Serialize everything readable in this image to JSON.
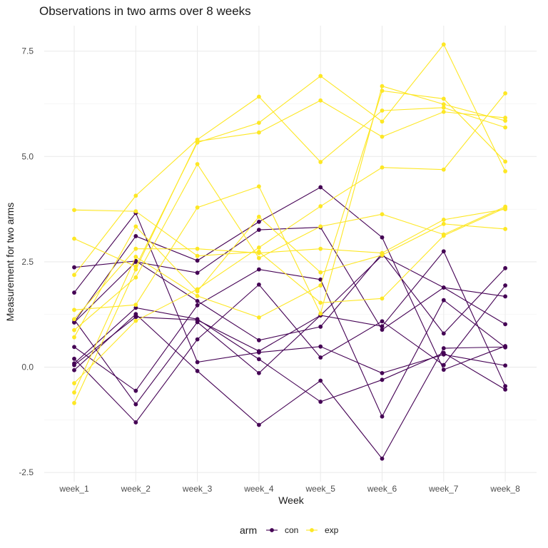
{
  "chart_data": {
    "type": "line",
    "title": "Observations in two arms over 8 weeks",
    "xlabel": "Week",
    "ylabel": "Measurement for two arms",
    "categories": [
      "week_1",
      "week_2",
      "week_3",
      "week_4",
      "week_5",
      "week_6",
      "week_7",
      "week_8"
    ],
    "yticks": [
      -2.5,
      0.0,
      2.5,
      5.0,
      7.5
    ],
    "ytick_labels": [
      "-2.5",
      "0.0",
      "2.5",
      "5.0",
      "7.5"
    ],
    "ylim": [
      -2.75,
      8.0
    ],
    "grid": true,
    "legend_title": "arm",
    "legend_position": "bottom",
    "groups": [
      {
        "name": "con",
        "color": "#440154"
      },
      {
        "name": "exp",
        "color": "#FDE725"
      }
    ],
    "series": [
      {
        "group": "con",
        "values": [
          0.2,
          -1.31,
          0.66,
          1.96,
          0.23,
          1.09,
          0.05,
          1.94
        ]
      },
      {
        "group": "con",
        "values": [
          1.13,
          -0.88,
          1.07,
          -0.14,
          1.23,
          0.97,
          2.75,
          -0.45
        ]
      },
      {
        "group": "con",
        "values": [
          1.77,
          3.66,
          0.12,
          0.35,
          0.49,
          -0.14,
          0.3,
          0.04
        ]
      },
      {
        "group": "con",
        "values": [
          0.05,
          1.19,
          1.12,
          0.38,
          1.23,
          2.65,
          1.89,
          1.68
        ]
      },
      {
        "group": "con",
        "values": [
          -0.07,
          1.26,
          -0.09,
          -1.37,
          -0.32,
          -2.17,
          0.45,
          0.48
        ]
      },
      {
        "group": "con",
        "values": [
          1.06,
          2.5,
          2.24,
          3.26,
          3.32,
          0.89,
          1.89,
          1.02
        ]
      },
      {
        "group": "con",
        "values": [
          2.37,
          2.52,
          1.57,
          0.64,
          0.96,
          2.7,
          0.8,
          2.35
        ]
      },
      {
        "group": "con",
        "values": [
          0.48,
          -0.56,
          1.47,
          2.32,
          2.08,
          -1.17,
          1.59,
          0.47
        ]
      },
      {
        "group": "con",
        "values": [
          0.09,
          1.41,
          1.14,
          0.19,
          -0.82,
          -0.3,
          0.34,
          -0.53
        ]
      },
      {
        "group": "con",
        "values": [
          1.07,
          3.11,
          2.53,
          3.45,
          4.27,
          3.08,
          -0.06,
          0.5
        ]
      },
      {
        "group": "exp",
        "values": [
          0.71,
          3.34,
          1.8,
          3.57,
          2.25,
          2.66,
          3.4,
          3.28
        ]
      },
      {
        "group": "exp",
        "values": [
          -0.85,
          2.32,
          5.36,
          5.57,
          6.33,
          5.47,
          6.06,
          5.92
        ]
      },
      {
        "group": "exp",
        "values": [
          2.19,
          4.07,
          5.4,
          6.42,
          4.87,
          6.09,
          6.16,
          5.69
        ]
      },
      {
        "group": "exp",
        "values": [
          1.14,
          2.81,
          2.81,
          2.71,
          2.81,
          2.71,
          3.5,
          3.75
        ]
      },
      {
        "group": "exp",
        "values": [
          0.88,
          2.13,
          4.82,
          2.59,
          3.34,
          3.63,
          3.15,
          3.81
        ]
      },
      {
        "group": "exp",
        "values": [
          1.36,
          1.48,
          3.79,
          4.29,
          1.27,
          6.67,
          6.24,
          5.85
        ]
      },
      {
        "group": "exp",
        "values": [
          -0.38,
          1.1,
          1.85,
          2.84,
          3.82,
          4.74,
          4.69,
          6.5
        ]
      },
      {
        "group": "exp",
        "values": [
          3.73,
          3.7,
          2.64,
          2.74,
          1.53,
          1.63,
          3.12,
          3.78
        ]
      },
      {
        "group": "exp",
        "values": [
          -0.6,
          2.62,
          1.69,
          1.18,
          1.94,
          6.56,
          6.37,
          4.88
        ]
      },
      {
        "group": "exp",
        "values": [
          3.05,
          2.39,
          5.33,
          5.8,
          6.91,
          5.83,
          7.66,
          4.65
        ]
      }
    ]
  }
}
